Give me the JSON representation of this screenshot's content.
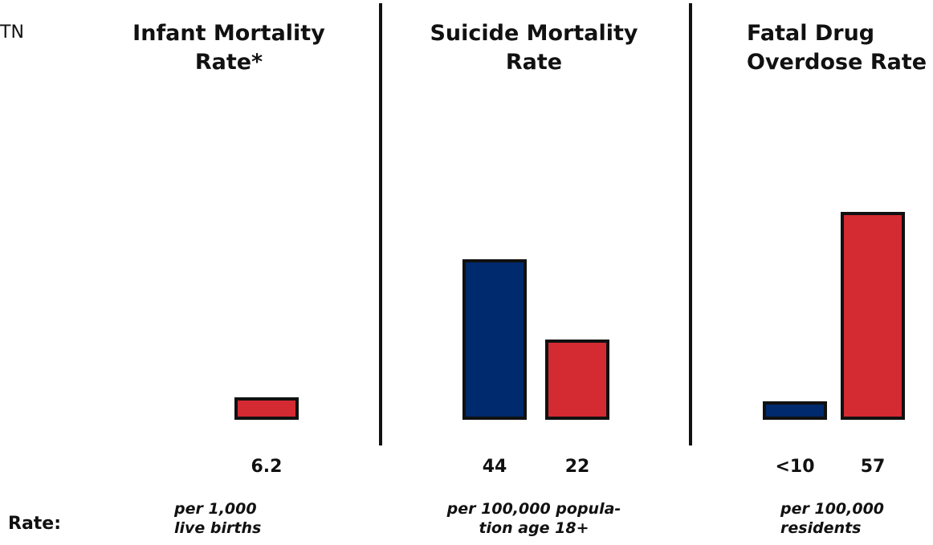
{
  "corner_label": "TN",
  "rate_label": "Rate:",
  "colors": {
    "blue": "#002a6e",
    "red": "#d42a32",
    "divider": "#111111"
  },
  "chart_data": [
    {
      "type": "bar",
      "title": "Infant Mortality\nRate*",
      "unit": "per 1,000\nlive births",
      "bars": [
        {
          "value": 6.2,
          "label": "6.2",
          "color": "red"
        }
      ]
    },
    {
      "type": "bar",
      "title": "Suicide Mortality\nRate",
      "unit": "per 100,000 popula-\ntion age 18+",
      "bars": [
        {
          "value": 44,
          "label": "44",
          "color": "blue"
        },
        {
          "value": 22,
          "label": "22",
          "color": "red"
        }
      ]
    },
    {
      "type": "bar",
      "title": "Fatal Drug\nOverdose Rate",
      "unit": "per 100,000\nresidents",
      "bars": [
        {
          "value": 5,
          "label": "<10",
          "color": "blue"
        },
        {
          "value": 57,
          "label": "57",
          "color": "red"
        }
      ]
    }
  ]
}
